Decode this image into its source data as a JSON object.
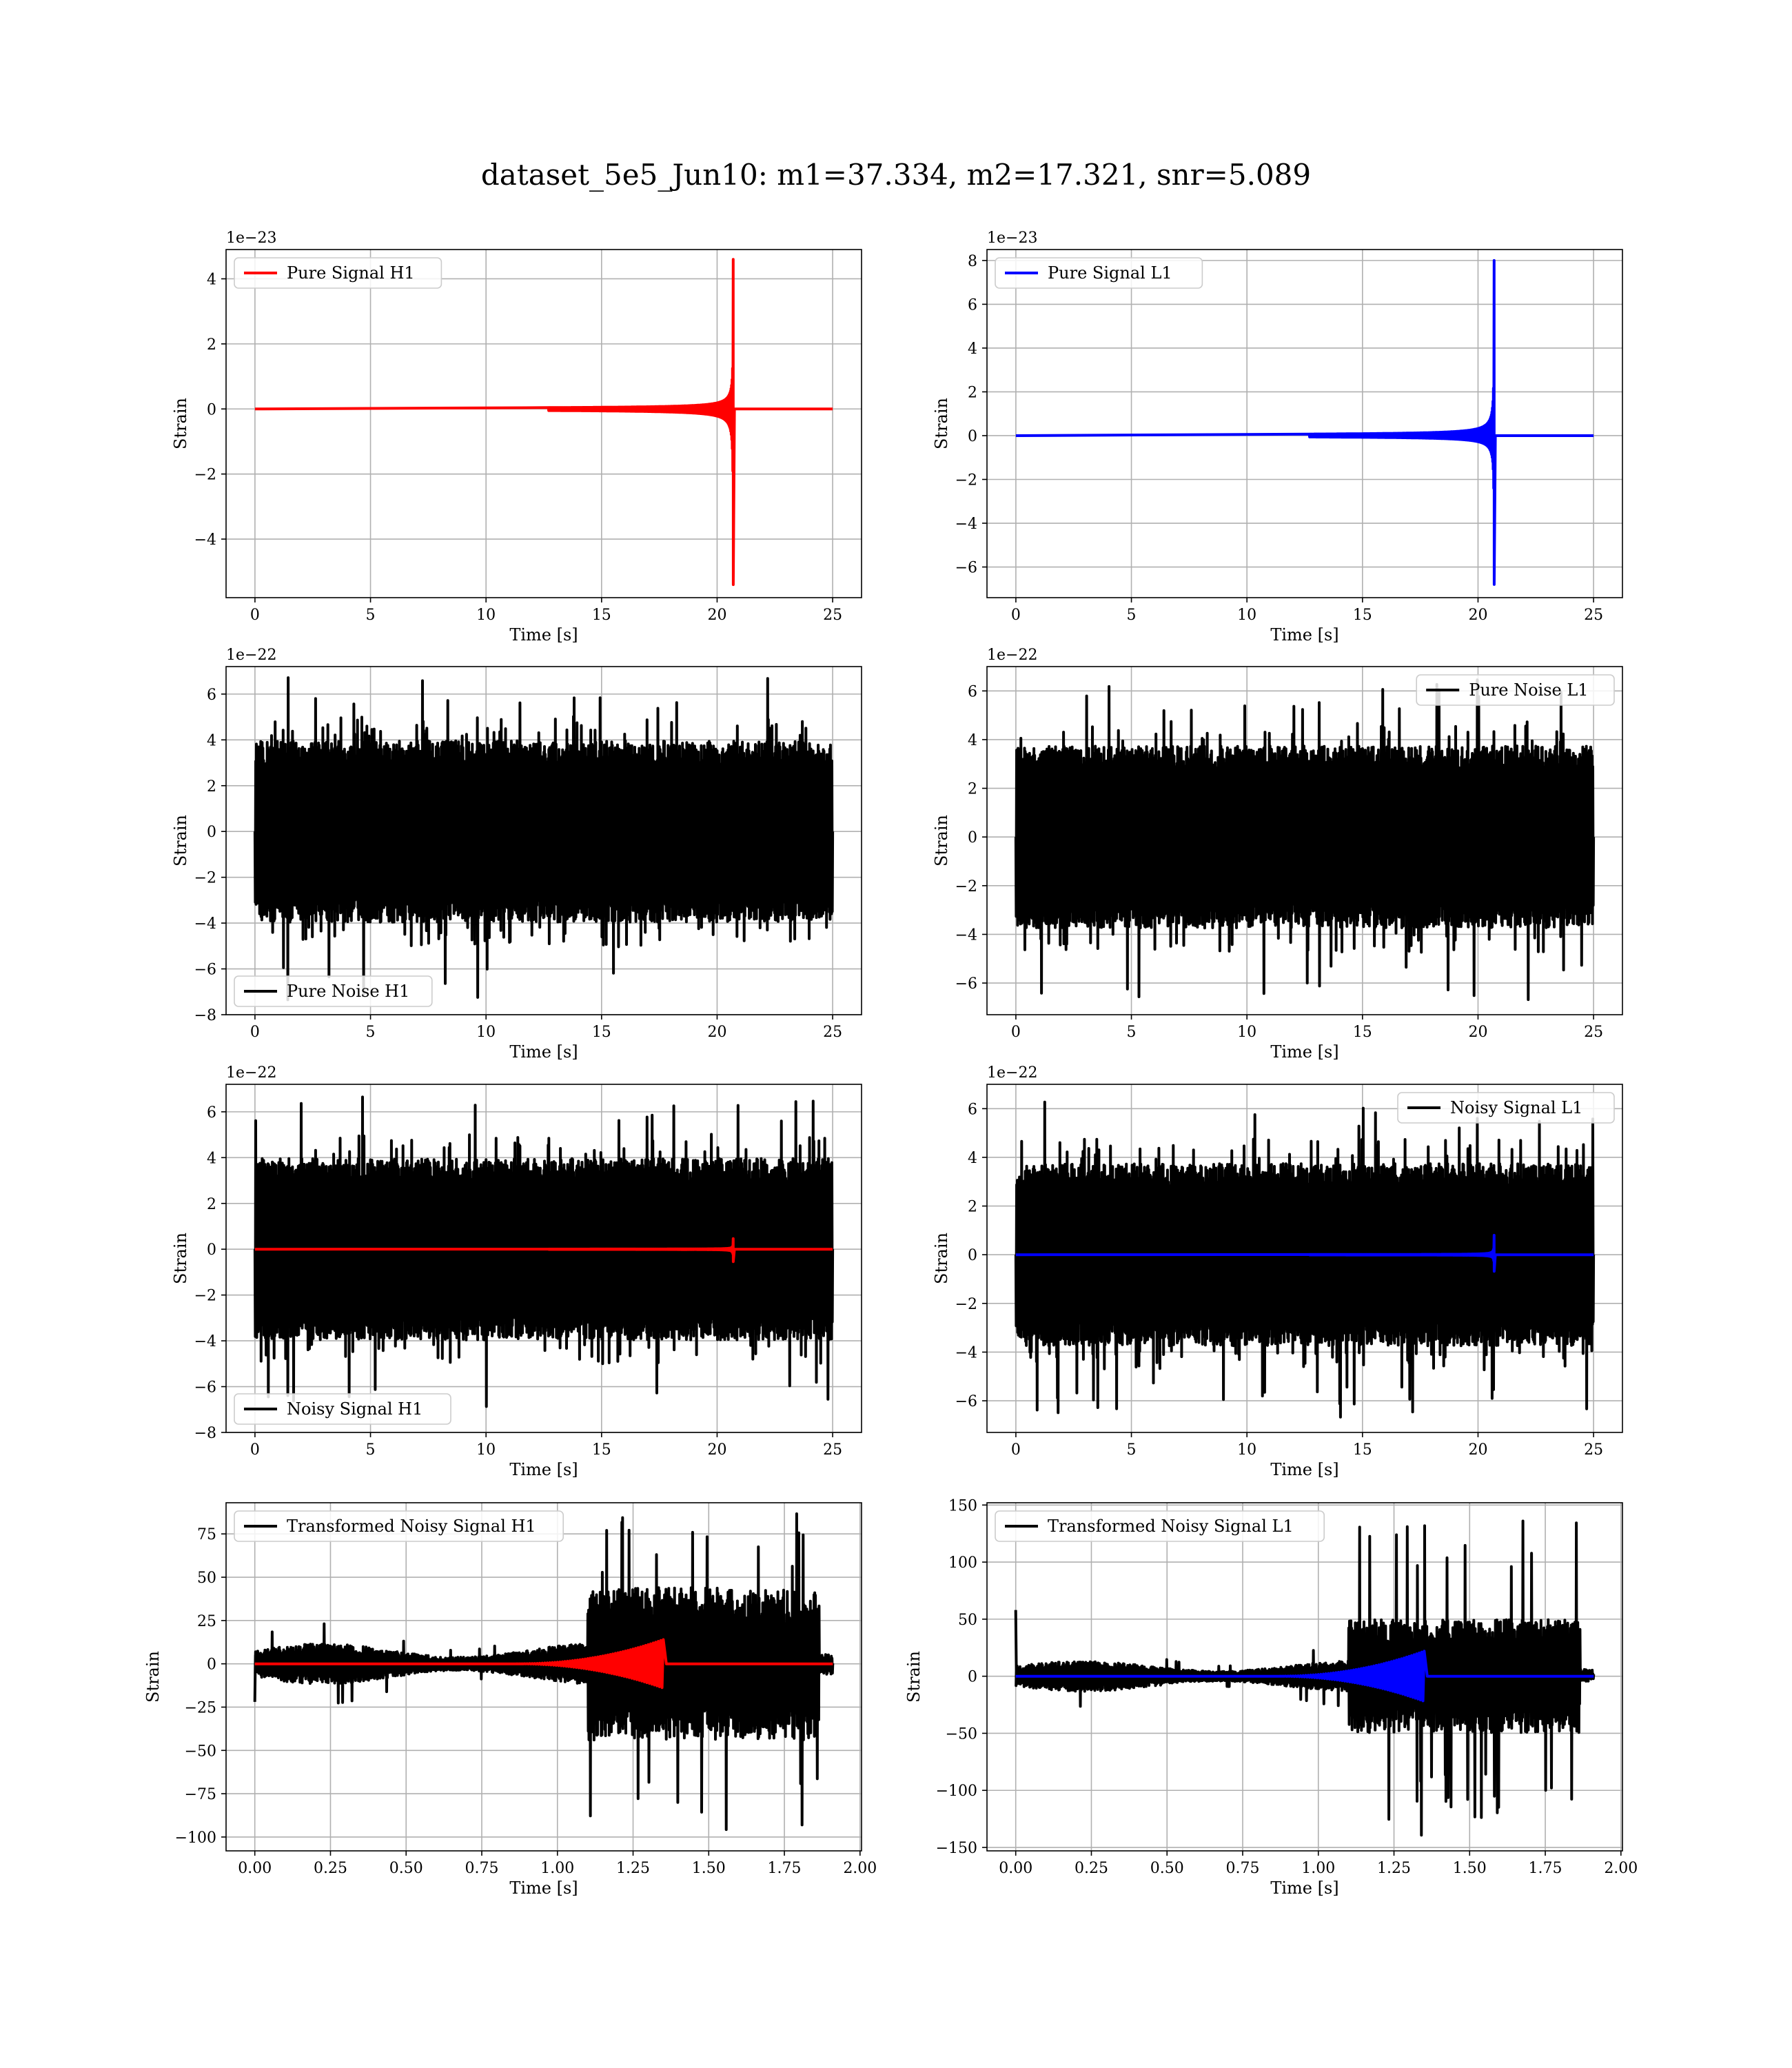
{
  "figure": {
    "title": "dataset_5e5_Jun10: m1=37.334, m2=17.321, snr=5.089"
  },
  "chart_data": [
    {
      "type": "line",
      "panel": "top-left",
      "xlabel": "Time [s]",
      "ylabel": "Strain",
      "offset_text": "1e−23",
      "xlim": [
        -1.25,
        26.25
      ],
      "ylim": [
        -5.8,
        4.9
      ],
      "xticks": [
        0,
        5,
        10,
        15,
        20,
        25
      ],
      "yticks": [
        -4,
        -2,
        0,
        2,
        4
      ],
      "grid": true,
      "legend": {
        "loc": "upper left"
      },
      "series": [
        {
          "name": "Pure Signal H1",
          "kind": "chirp",
          "color": "#ff0000",
          "t_start": 0,
          "t_end": 25,
          "t_merge": 20.7,
          "peak_pos": 4.6,
          "peak_neg": -5.4
        }
      ]
    },
    {
      "type": "line",
      "panel": "top-right",
      "xlabel": "Time [s]",
      "ylabel": "Strain",
      "offset_text": "1e−23",
      "xlim": [
        -1.25,
        26.25
      ],
      "ylim": [
        -7.4,
        8.5
      ],
      "xticks": [
        0,
        5,
        10,
        15,
        20,
        25
      ],
      "yticks": [
        -6,
        -4,
        -2,
        0,
        2,
        4,
        6,
        8
      ],
      "grid": true,
      "legend": {
        "loc": "upper left"
      },
      "series": [
        {
          "name": "Pure Signal L1",
          "kind": "chirp",
          "color": "#0000ff",
          "t_start": 0,
          "t_end": 25,
          "t_merge": 20.7,
          "peak_pos": 8.0,
          "peak_neg": -6.8
        }
      ]
    },
    {
      "type": "line",
      "panel": "row2-left",
      "xlabel": "Time [s]",
      "ylabel": "Strain",
      "offset_text": "1e−22",
      "xlim": [
        -1.25,
        26.25
      ],
      "ylim": [
        -8.0,
        7.2
      ],
      "xticks": [
        0,
        5,
        10,
        15,
        20,
        25
      ],
      "yticks": [
        -8,
        -6,
        -4,
        -2,
        0,
        2,
        4,
        6
      ],
      "grid": true,
      "legend": {
        "loc": "lower left"
      },
      "series": [
        {
          "name": "Pure Noise H1",
          "kind": "noise",
          "color": "#000000",
          "t_start": 0,
          "t_end": 25,
          "band": 3.6,
          "max": 6.8,
          "min": -7.4
        }
      ]
    },
    {
      "type": "line",
      "panel": "row2-right",
      "xlabel": "Time [s]",
      "ylabel": "Strain",
      "offset_text": "1e−22",
      "xlim": [
        -1.25,
        26.25
      ],
      "ylim": [
        -7.3,
        7.0
      ],
      "xticks": [
        0,
        5,
        10,
        15,
        20,
        25
      ],
      "yticks": [
        -6,
        -4,
        -2,
        0,
        2,
        4,
        6
      ],
      "grid": true,
      "legend": {
        "loc": "upper right"
      },
      "series": [
        {
          "name": "Pure Noise L1",
          "kind": "noise",
          "color": "#000000",
          "t_start": 0,
          "t_end": 25,
          "band": 3.4,
          "max": 6.5,
          "min": -6.7
        }
      ]
    },
    {
      "type": "line",
      "panel": "row3-left",
      "xlabel": "Time [s]",
      "ylabel": "Strain",
      "offset_text": "1e−22",
      "xlim": [
        -1.25,
        26.25
      ],
      "ylim": [
        -8.0,
        7.2
      ],
      "xticks": [
        0,
        5,
        10,
        15,
        20,
        25
      ],
      "yticks": [
        -8,
        -6,
        -4,
        -2,
        0,
        2,
        4,
        6
      ],
      "grid": true,
      "legend": {
        "loc": "lower left"
      },
      "series": [
        {
          "name": "Noisy Signal H1",
          "kind": "noise",
          "color": "#000000",
          "t_start": 0,
          "t_end": 25,
          "band": 3.6,
          "max": 6.8,
          "min": -7.4
        },
        {
          "name": "",
          "kind": "chirp",
          "color": "#ff0000",
          "t_start": 0,
          "t_end": 25,
          "t_merge": 20.7,
          "peak_pos": 0.46,
          "peak_neg": -0.54
        }
      ]
    },
    {
      "type": "line",
      "panel": "row3-right",
      "xlabel": "Time [s]",
      "ylabel": "Strain",
      "offset_text": "1e−22",
      "xlim": [
        -1.25,
        26.25
      ],
      "ylim": [
        -7.3,
        7.0
      ],
      "xticks": [
        0,
        5,
        10,
        15,
        20,
        25
      ],
      "yticks": [
        -6,
        -4,
        -2,
        0,
        2,
        4,
        6
      ],
      "grid": true,
      "legend": {
        "loc": "upper right"
      },
      "series": [
        {
          "name": "Noisy Signal L1",
          "kind": "noise",
          "color": "#000000",
          "t_start": 0,
          "t_end": 25,
          "band": 3.4,
          "max": 6.5,
          "min": -6.7
        },
        {
          "name": "",
          "kind": "chirp",
          "color": "#0000ff",
          "t_start": 0,
          "t_end": 25,
          "t_merge": 20.7,
          "peak_pos": 0.8,
          "peak_neg": -0.68
        }
      ]
    },
    {
      "type": "line",
      "panel": "bottom-left",
      "xlabel": "Time [s]",
      "ylabel": "Strain",
      "offset_text": "",
      "xlim": [
        -0.095,
        2.005
      ],
      "ylim": [
        -108,
        93
      ],
      "xticks": [
        0.0,
        0.25,
        0.5,
        0.75,
        1.0,
        1.25,
        1.5,
        1.75,
        2.0
      ],
      "xticklabels": [
        "0.00",
        "0.25",
        "0.50",
        "0.75",
        "1.00",
        "1.25",
        "1.50",
        "1.75",
        "2.00"
      ],
      "yticks": [
        -100,
        -75,
        -50,
        -25,
        0,
        25,
        50,
        75
      ],
      "grid": true,
      "legend": {
        "loc": "upper left"
      },
      "series": [
        {
          "name": "Transformed Noisy Signal H1",
          "kind": "whitened",
          "color": "#000000",
          "t_start": 0,
          "t_end": 1.91,
          "t_jump": 1.1,
          "band_low": 7,
          "band_high": 40,
          "max": 87,
          "min": -103
        },
        {
          "name": "",
          "kind": "whitened-chirp",
          "color": "#ff0000",
          "t_start": 0,
          "t_end": 1.91,
          "t_merge": 1.35,
          "peak": 14
        }
      ]
    },
    {
      "type": "line",
      "panel": "bottom-right",
      "xlabel": "Time [s]",
      "ylabel": "Strain",
      "offset_text": "",
      "xlim": [
        -0.095,
        2.005
      ],
      "ylim": [
        -153,
        152
      ],
      "xticks": [
        0.0,
        0.25,
        0.5,
        0.75,
        1.0,
        1.25,
        1.5,
        1.75,
        2.0
      ],
      "xticklabels": [
        "0.00",
        "0.25",
        "0.50",
        "0.75",
        "1.00",
        "1.25",
        "1.50",
        "1.75",
        "2.00"
      ],
      "yticks": [
        -150,
        -100,
        -50,
        0,
        50,
        100,
        150
      ],
      "grid": true,
      "legend": {
        "loc": "upper left"
      },
      "series": [
        {
          "name": "Transformed Noisy Signal L1",
          "kind": "whitened",
          "color": "#000000",
          "t_start": 0,
          "t_end": 1.91,
          "t_jump": 1.1,
          "band_low": 8,
          "band_high": 45,
          "max": 137,
          "min": -140
        },
        {
          "name": "",
          "kind": "whitened-chirp",
          "color": "#0000ff",
          "t_start": 0,
          "t_end": 1.91,
          "t_merge": 1.35,
          "peak": 22
        }
      ]
    }
  ]
}
